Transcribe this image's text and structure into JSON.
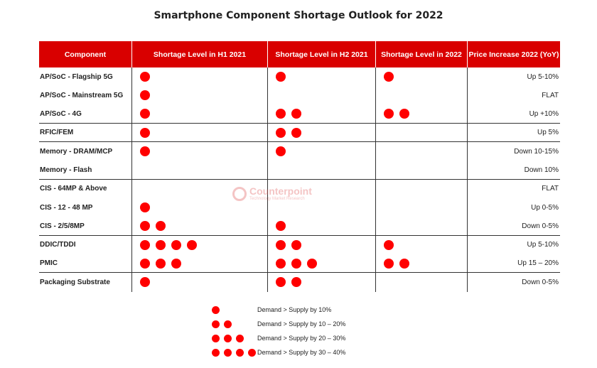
{
  "title": "Smartphone Component Shortage Outlook for 2022",
  "headers": [
    "Component",
    "Shortage Level in H1 2021",
    "Shortage Level in H2 2021",
    "Shortage Level in 2022",
    "Price Increase 2022 (YoY)"
  ],
  "rows": [
    {
      "component": "AP/SoC - Flagship 5G",
      "h1_2021": 1,
      "h2_2021": 1,
      "y2022": 1,
      "price": "Up 5-10%",
      "divider": false
    },
    {
      "component": "AP/SoC - Mainstream 5G",
      "h1_2021": 1,
      "h2_2021": 0,
      "y2022": 0,
      "price": "FLAT",
      "divider": false
    },
    {
      "component": "AP/SoC - 4G",
      "h1_2021": 1,
      "h2_2021": 2,
      "y2022": 2,
      "price": "Up +10%",
      "divider": true
    },
    {
      "component": "RFIC/FEM",
      "h1_2021": 1,
      "h2_2021": 2,
      "y2022": 0,
      "price": "Up 5%",
      "divider": true
    },
    {
      "component": "Memory - DRAM/MCP",
      "h1_2021": 1,
      "h2_2021": 1,
      "y2022": 0,
      "price": "Down 10-15%",
      "divider": false
    },
    {
      "component": "Memory - Flash",
      "h1_2021": 0,
      "h2_2021": 0,
      "y2022": 0,
      "price": "Down 10%",
      "divider": true
    },
    {
      "component": "CIS - 64MP & Above",
      "h1_2021": 0,
      "h2_2021": 0,
      "y2022": 0,
      "price": "FLAT",
      "divider": false
    },
    {
      "component": "CIS - 12 - 48 MP",
      "h1_2021": 1,
      "h2_2021": 0,
      "y2022": 0,
      "price": "Up 0-5%",
      "divider": false
    },
    {
      "component": "CIS - 2/5/8MP",
      "h1_2021": 2,
      "h2_2021": 1,
      "y2022": 0,
      "price": "Down 0-5%",
      "divider": true
    },
    {
      "component": "DDIC/TDDI",
      "h1_2021": 4,
      "h2_2021": 2,
      "y2022": 1,
      "price": "Up 5-10%",
      "divider": false
    },
    {
      "component": "PMIC",
      "h1_2021": 3,
      "h2_2021": 3,
      "y2022": 2,
      "price": "Up 15 – 20%",
      "divider": true
    },
    {
      "component": "Packaging Substrate",
      "h1_2021": 1,
      "h2_2021": 2,
      "y2022": 0,
      "price": "Down 0-5%",
      "divider": false
    }
  ],
  "legend": [
    {
      "dots": 1,
      "label": "Demand > Supply by 10%"
    },
    {
      "dots": 2,
      "label": "Demand > Supply by 10 – 20%"
    },
    {
      "dots": 3,
      "label": "Demand > Supply by 20 – 30%"
    },
    {
      "dots": 4,
      "label": "Demand > Supply by 30 – 40%"
    }
  ],
  "watermark": {
    "name": "Counterpoint",
    "tagline": "Technology Market Research"
  },
  "colors": {
    "header_bg": "#d90000",
    "dot": "#ff0000"
  },
  "chart_data": {
    "type": "table",
    "title": "Smartphone Component Shortage Outlook for 2022",
    "columns": [
      "Component",
      "Shortage Level in H1 2021",
      "Shortage Level in H2 2021",
      "Shortage Level in 2022",
      "Price Increase 2022 (YoY)"
    ],
    "categories": [
      "AP/SoC - Flagship 5G",
      "AP/SoC - Mainstream 5G",
      "AP/SoC - 4G",
      "RFIC/FEM",
      "Memory - DRAM/MCP",
      "Memory - Flash",
      "CIS - 64MP & Above",
      "CIS - 12 - 48 MP",
      "CIS - 2/5/8MP",
      "DDIC/TDDI",
      "PMIC",
      "Packaging Substrate"
    ],
    "series": [
      {
        "name": "Shortage Level in H1 2021",
        "values": [
          1,
          1,
          1,
          1,
          1,
          0,
          0,
          1,
          2,
          4,
          3,
          1
        ]
      },
      {
        "name": "Shortage Level in H2 2021",
        "values": [
          1,
          0,
          2,
          2,
          1,
          0,
          0,
          0,
          1,
          2,
          3,
          2
        ]
      },
      {
        "name": "Shortage Level in 2022",
        "values": [
          1,
          0,
          2,
          0,
          0,
          0,
          0,
          0,
          0,
          1,
          2,
          0
        ]
      }
    ],
    "price_increase_2022": [
      "Up 5-10%",
      "FLAT",
      "Up +10%",
      "Up 5%",
      "Down 10-15%",
      "Down 10%",
      "FLAT",
      "Up 0-5%",
      "Down 0-5%",
      "Up 5-10%",
      "Up 15 – 20%",
      "Down 0-5%"
    ]
  }
}
